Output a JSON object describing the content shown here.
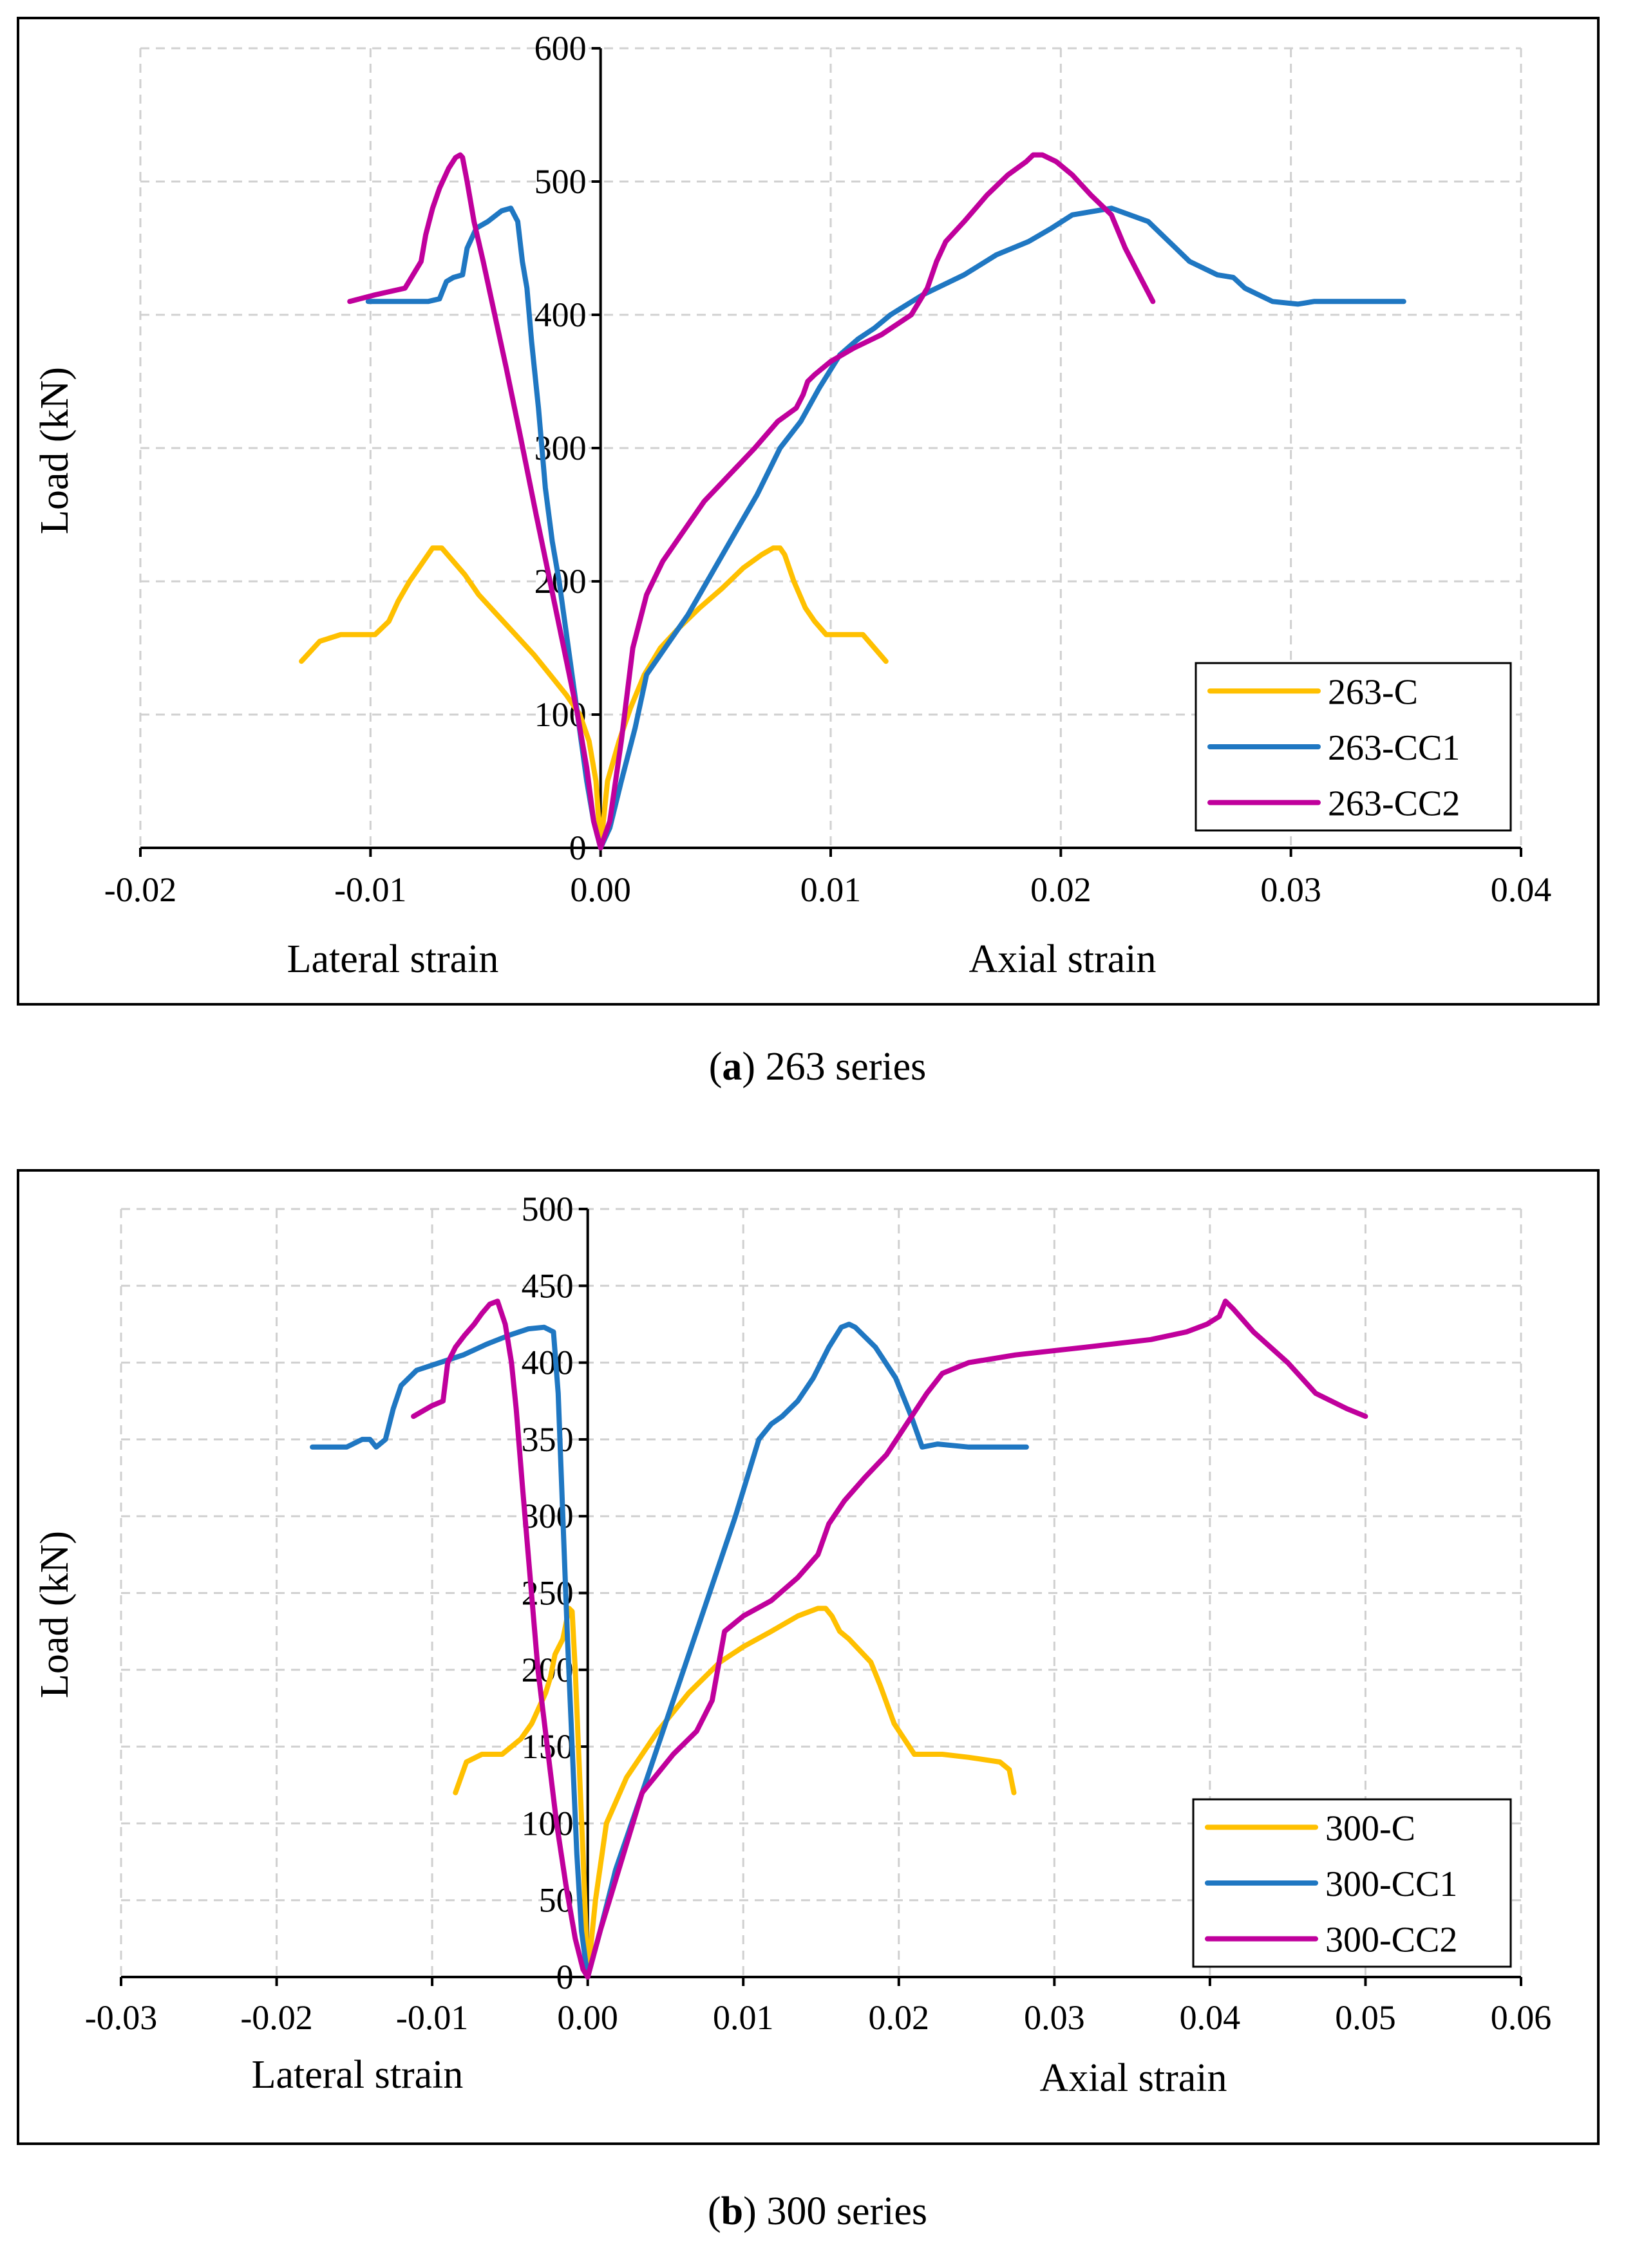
{
  "panels": [
    {
      "caption_letter": "a",
      "caption_text": " 263 series"
    },
    {
      "caption_letter": "b",
      "caption_text": " 300 series"
    }
  ],
  "colors": {
    "yellow": "#FFC000",
    "blue": "#1F77C2",
    "magenta": "#C0009C",
    "grid": "#d0d0d0"
  },
  "chart_data": [
    {
      "type": "line",
      "title": "",
      "ylabel": "Load (kN)",
      "xlabel_left": "Lateral strain",
      "xlabel_right": "Axial strain",
      "xlim": [
        -0.02,
        0.04
      ],
      "ylim": [
        0,
        600
      ],
      "xticks": [
        -0.02,
        -0.01,
        0.0,
        0.01,
        0.02,
        0.03,
        0.04
      ],
      "xtick_labels": [
        "-0.02",
        "-0.01",
        "0.00",
        "0.01",
        "0.02",
        "0.03",
        "0.04"
      ],
      "yticks": [
        0,
        100,
        200,
        300,
        400,
        500,
        600
      ],
      "ytick_labels": [
        "0",
        "100",
        "200",
        "300",
        "400",
        "500",
        "600"
      ],
      "grid": true,
      "legend_position": "bottom-right",
      "series": [
        {
          "name": "263-C",
          "color": "#FFC000",
          "x": [
            -0.013,
            -0.0122,
            -0.0113,
            -0.0105,
            -0.0098,
            -0.0092,
            -0.0088,
            -0.0083,
            -0.0077,
            -0.0073,
            -0.0069,
            -0.0064,
            -0.0059,
            -0.0053,
            -0.0045,
            -0.0037,
            -0.0029,
            -0.0022,
            -0.0015,
            -0.0009,
            -0.0005,
            -0.0002,
            0,
            0.0003,
            0.0008,
            0.0013,
            0.0019,
            0.0026,
            0.0034,
            0.0043,
            0.0053,
            0.0062,
            0.007,
            0.0075,
            0.0078,
            0.008,
            0.0084,
            0.0089,
            0.0093,
            0.0098,
            0.0102,
            0.0107,
            0.0114,
            0.0119,
            0.0124
          ],
          "y": [
            140,
            155,
            160,
            160,
            160,
            170,
            185,
            200,
            215,
            225,
            225,
            215,
            205,
            190,
            175,
            160,
            145,
            130,
            115,
            100,
            80,
            50,
            0,
            50,
            80,
            105,
            130,
            150,
            165,
            180,
            195,
            210,
            220,
            225,
            225,
            220,
            200,
            180,
            170,
            160,
            160,
            160,
            160,
            150,
            140
          ]
        },
        {
          "name": "263-CC1",
          "color": "#1F77C2",
          "x": [
            -0.0101,
            -0.0092,
            -0.0083,
            -0.0075,
            -0.007,
            -0.0067,
            -0.0064,
            -0.006,
            -0.0058,
            -0.0054,
            -0.0049,
            -0.0043,
            -0.0039,
            -0.0036,
            -0.0034,
            -0.0032,
            -0.003,
            -0.0027,
            -0.0024,
            -0.0021,
            -0.0018,
            -0.0014,
            -0.001,
            -0.0006,
            -0.0003,
            0,
            0.0004,
            0.0009,
            0.0015,
            0.002,
            0.0028,
            0.0038,
            0.0048,
            0.0058,
            0.0068,
            0.0078,
            0.0087,
            0.0095,
            0.0104,
            0.0112,
            0.0119,
            0.0126,
            0.014,
            0.0158,
            0.0172,
            0.0186,
            0.0196,
            0.0205,
            0.0222,
            0.0238,
            0.0247,
            0.0256,
            0.0268,
            0.0275,
            0.028,
            0.0292,
            0.0303,
            0.031,
            0.0316,
            0.033,
            0.0349
          ],
          "y": [
            410,
            410,
            410,
            410,
            412,
            425,
            428,
            430,
            450,
            465,
            470,
            478,
            480,
            470,
            440,
            420,
            380,
            330,
            270,
            230,
            200,
            150,
            100,
            50,
            20,
            0,
            15,
            50,
            90,
            130,
            150,
            175,
            205,
            235,
            265,
            300,
            320,
            345,
            370,
            382,
            390,
            400,
            415,
            430,
            445,
            455,
            465,
            475,
            480,
            470,
            455,
            440,
            430,
            428,
            420,
            410,
            408,
            410,
            410,
            410,
            410
          ]
        },
        {
          "name": "263-CC2",
          "color": "#C0009C",
          "x": [
            -0.0109,
            -0.0098,
            -0.0085,
            -0.0078,
            -0.0076,
            -0.0073,
            -0.007,
            -0.0066,
            -0.0063,
            -0.0061,
            -0.006,
            -0.0058,
            -0.0055,
            -0.0051,
            -0.0046,
            -0.0041,
            -0.0035,
            -0.0028,
            -0.0022,
            -0.0016,
            -0.001,
            -0.0006,
            -0.0003,
            0,
            0.0004,
            0.0009,
            0.0014,
            0.002,
            0.0027,
            0.0035,
            0.0045,
            0.0056,
            0.0067,
            0.0077,
            0.0085,
            0.0088,
            0.009,
            0.0093,
            0.01,
            0.011,
            0.0122,
            0.0135,
            0.0142,
            0.0146,
            0.015,
            0.0158,
            0.0168,
            0.0177,
            0.0185,
            0.0188,
            0.0192,
            0.0198,
            0.0205,
            0.0213,
            0.0222,
            0.0228,
            0.0234,
            0.024
          ],
          "y": [
            410,
            415,
            420,
            440,
            460,
            480,
            495,
            510,
            518,
            520,
            518,
            500,
            470,
            440,
            400,
            360,
            310,
            250,
            200,
            150,
            100,
            60,
            20,
            0,
            20,
            80,
            150,
            190,
            215,
            235,
            260,
            280,
            300,
            320,
            330,
            340,
            350,
            355,
            365,
            375,
            385,
            400,
            420,
            440,
            455,
            470,
            490,
            505,
            515,
            520,
            520,
            515,
            505,
            490,
            475,
            450,
            430,
            410
          ]
        }
      ]
    },
    {
      "type": "line",
      "title": "",
      "ylabel": "Load (kN)",
      "xlabel_left": "Lateral strain",
      "xlabel_right": "Axial strain",
      "xlim": [
        -0.03,
        0.06
      ],
      "ylim": [
        0,
        500
      ],
      "xticks": [
        -0.03,
        -0.02,
        -0.01,
        0.0,
        0.01,
        0.02,
        0.03,
        0.04,
        0.05,
        0.06
      ],
      "xtick_labels": [
        "-0.03",
        "-0.02",
        "-0.01",
        "0.00",
        "0.01",
        "0.02",
        "0.03",
        "0.04",
        "0.05",
        "0.06"
      ],
      "yticks": [
        0,
        50,
        100,
        150,
        200,
        250,
        300,
        350,
        400,
        450,
        500
      ],
      "ytick_labels": [
        "0",
        "50",
        "100",
        "150",
        "200",
        "250",
        "300",
        "350",
        "400",
        "450",
        "500"
      ],
      "grid": true,
      "legend_position": "bottom-right",
      "series": [
        {
          "name": "300-C",
          "color": "#FFC000",
          "x": [
            -0.0085,
            -0.0078,
            -0.0068,
            -0.0055,
            -0.0043,
            -0.0036,
            -0.0027,
            -0.0024,
            -0.0021,
            -0.0016,
            -0.0013,
            -0.0012,
            -0.001,
            -0.0008,
            -0.0006,
            -0.0003,
            0,
            0.0005,
            0.0012,
            0.0025,
            0.0045,
            0.0065,
            0.0085,
            0.01,
            0.0118,
            0.0135,
            0.0148,
            0.0153,
            0.0157,
            0.0162,
            0.0168,
            0.0182,
            0.0188,
            0.0197,
            0.021,
            0.0228,
            0.0245,
            0.0265,
            0.0271,
            0.0274
          ],
          "y": [
            120,
            140,
            145,
            145,
            155,
            165,
            185,
            195,
            210,
            220,
            235,
            240,
            238,
            200,
            150,
            80,
            0,
            50,
            100,
            130,
            160,
            185,
            205,
            215,
            225,
            235,
            240,
            240,
            235,
            225,
            220,
            205,
            190,
            165,
            145,
            145,
            143,
            140,
            135,
            120
          ]
        },
        {
          "name": "300-CC1",
          "color": "#1F77C2",
          "x": [
            -0.0177,
            -0.0165,
            -0.0155,
            -0.0145,
            -0.014,
            -0.0136,
            -0.013,
            -0.0125,
            -0.012,
            -0.011,
            -0.0095,
            -0.008,
            -0.0065,
            -0.005,
            -0.0038,
            -0.0028,
            -0.0022,
            -0.0019,
            -0.0016,
            -0.0013,
            -0.001,
            -0.0007,
            -0.0004,
            0,
            0.0008,
            0.0018,
            0.0035,
            0.0055,
            0.0075,
            0.0095,
            0.011,
            0.0118,
            0.0125,
            0.0135,
            0.0145,
            0.0155,
            0.0163,
            0.0168,
            0.0172,
            0.0185,
            0.0198,
            0.0208,
            0.0215,
            0.0225,
            0.0245,
            0.0268,
            0.0282
          ],
          "y": [
            345,
            345,
            345,
            350,
            350,
            345,
            350,
            370,
            385,
            395,
            400,
            405,
            412,
            418,
            422,
            423,
            420,
            380,
            300,
            220,
            150,
            80,
            30,
            0,
            30,
            70,
            120,
            180,
            240,
            300,
            350,
            360,
            365,
            375,
            390,
            410,
            423,
            425,
            423,
            410,
            390,
            365,
            345,
            347,
            345,
            345,
            345
          ]
        },
        {
          "name": "300-CC2",
          "color": "#C0009C",
          "x": [
            -0.0112,
            -0.01,
            -0.0093,
            -0.009,
            -0.0085,
            -0.0079,
            -0.0073,
            -0.0068,
            -0.0063,
            -0.0058,
            -0.0053,
            -0.0049,
            -0.0046,
            -0.0042,
            -0.0037,
            -0.0032,
            -0.0026,
            -0.002,
            -0.0014,
            -0.0008,
            -0.0003,
            0,
            0.0008,
            0.002,
            0.0035,
            0.0055,
            0.007,
            0.008,
            0.0088,
            0.01,
            0.0118,
            0.0135,
            0.0148,
            0.0155,
            0.0165,
            0.0178,
            0.0192,
            0.0205,
            0.0218,
            0.0228,
            0.0245,
            0.0275,
            0.032,
            0.0362,
            0.0385,
            0.0398,
            0.0406,
            0.041,
            0.0415,
            0.0428,
            0.045,
            0.0468,
            0.0488,
            0.05
          ],
          "y": [
            365,
            372,
            375,
            400,
            410,
            418,
            425,
            432,
            438,
            440,
            425,
            400,
            370,
            320,
            260,
            200,
            150,
            100,
            60,
            25,
            5,
            0,
            30,
            70,
            120,
            145,
            160,
            180,
            225,
            235,
            245,
            260,
            275,
            295,
            310,
            325,
            340,
            360,
            380,
            393,
            400,
            405,
            410,
            415,
            420,
            425,
            430,
            440,
            435,
            420,
            400,
            380,
            370,
            365
          ]
        }
      ]
    }
  ]
}
